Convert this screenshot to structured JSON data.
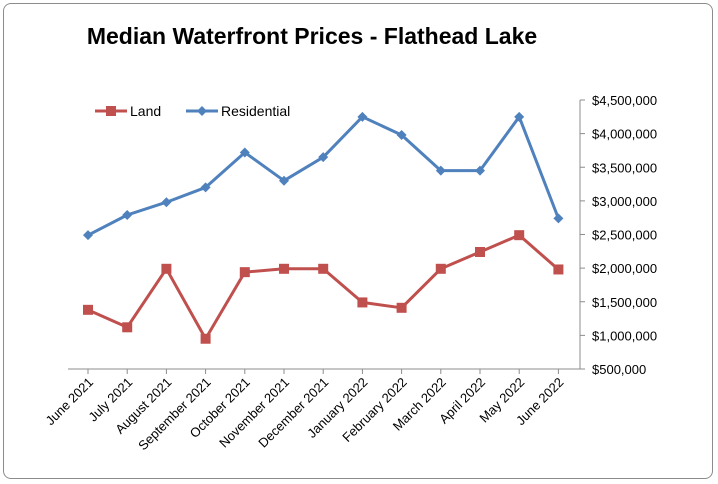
{
  "chart_data": {
    "type": "line",
    "title": "Median Waterfront Prices - Flathead Lake",
    "xlabel": "",
    "ylabel": "",
    "categories": [
      "June 2021",
      "July 2021",
      "August 2021",
      "September 2021",
      "October 2021",
      "November 2021",
      "December 2021",
      "January 2022",
      "February 2022",
      "March 2022",
      "April 2022",
      "May 2022",
      "June 2022"
    ],
    "ylim": [
      500000,
      4500000
    ],
    "y_ticks": [
      500000,
      1000000,
      1500000,
      2000000,
      2500000,
      3000000,
      3500000,
      4000000,
      4500000
    ],
    "y_tick_labels": [
      "$500,000",
      "$1,000,000",
      "$1,500,000",
      "$2,000,000",
      "$2,500,000",
      "$3,000,000",
      "$3,500,000",
      "$4,000,000",
      "$4,500,000"
    ],
    "y_axis_position": "right",
    "grid": false,
    "legend_position": "top-left",
    "series": [
      {
        "name": "Land",
        "color": "#c0504d",
        "marker": "square",
        "values": [
          1380000,
          1120000,
          1990000,
          950000,
          1940000,
          1990000,
          1990000,
          1490000,
          1410000,
          1990000,
          2240000,
          2490000,
          1980000
        ]
      },
      {
        "name": "Residential",
        "color": "#4f81bd",
        "marker": "diamond",
        "values": [
          2490000,
          2790000,
          2980000,
          3200000,
          3720000,
          3300000,
          3650000,
          4250000,
          3980000,
          3450000,
          3450000,
          4250000,
          2740000
        ]
      }
    ]
  }
}
